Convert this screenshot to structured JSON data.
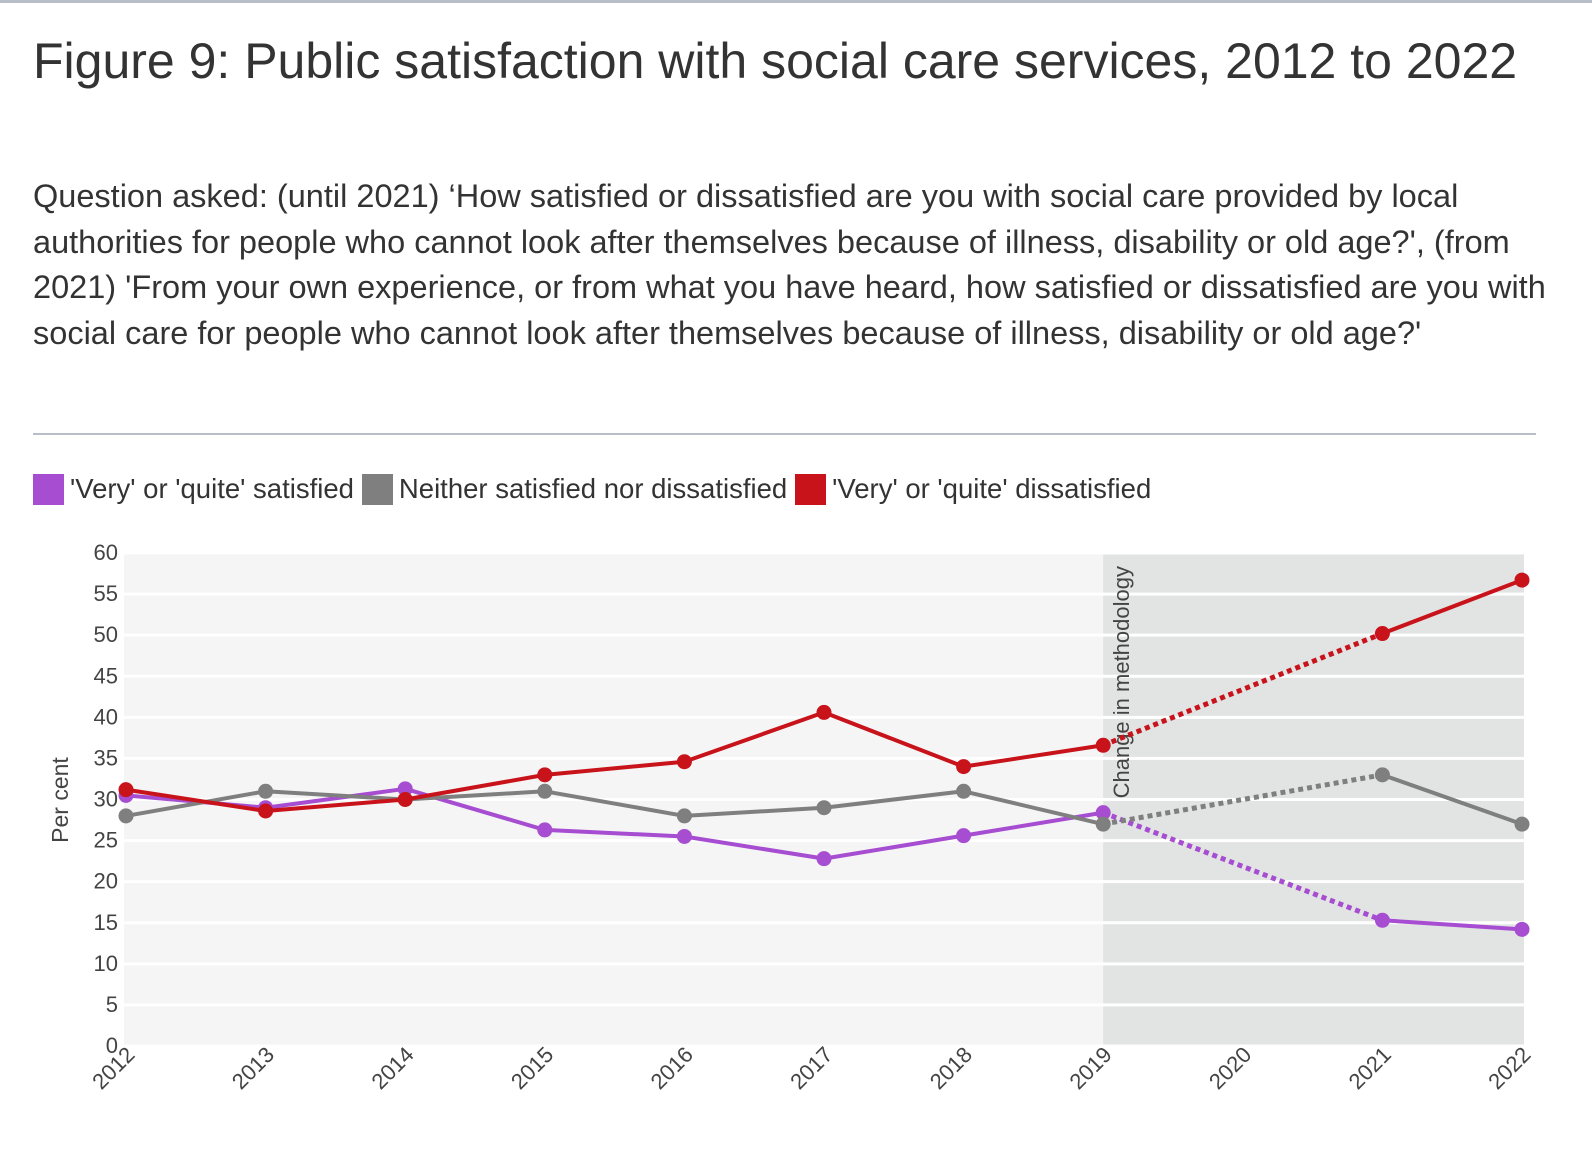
{
  "figure": {
    "title": "Figure 9: Public satisfaction with social care services, 2012 to 2022",
    "subtitle": "Question asked: (until 2021) ‘How satisfied or dissatisfied are you with social care provided by local authorities for people who cannot look after themselves because of illness, disability or old age?', (from 2021) 'From your own experience, or from what you have heard, how satisfied or dissatisfied are you with social care for people who cannot look after themselves because of illness, disability or old age?'"
  },
  "chart_data": {
    "type": "line",
    "x": [
      2012,
      2013,
      2014,
      2015,
      2016,
      2017,
      2018,
      2019,
      2020,
      2021,
      2022
    ],
    "x_tick_labels": [
      "2012",
      "2013",
      "2014",
      "2015",
      "2016",
      "2017",
      "2018",
      "2019",
      "2020",
      "2021",
      "2022"
    ],
    "ylabel": "Per cent",
    "ylim": [
      0,
      60
    ],
    "y_ticks": [
      0,
      5,
      10,
      15,
      20,
      25,
      30,
      35,
      40,
      45,
      50,
      55,
      60
    ],
    "grid": true,
    "legend_position": "top-left",
    "annotation": {
      "label": "Change in methodology",
      "shaded_from": 2019,
      "shaded_to": 2022
    },
    "series": [
      {
        "name": "'Very' or 'quite' satisfied",
        "color": "#a64dd1",
        "points": [
          [
            2012,
            30.5
          ],
          [
            2013,
            29
          ],
          [
            2014,
            31.3
          ],
          [
            2015,
            26.3
          ],
          [
            2016,
            25.5
          ],
          [
            2017,
            22.8
          ],
          [
            2018,
            25.6
          ],
          [
            2019,
            28.4
          ],
          [
            2021,
            15.3
          ],
          [
            2022,
            14.2
          ]
        ]
      },
      {
        "name": "Neither satisfied nor dissatisfied",
        "color": "#7f7f7f",
        "points": [
          [
            2012,
            28
          ],
          [
            2013,
            31
          ],
          [
            2014,
            30
          ],
          [
            2015,
            31
          ],
          [
            2016,
            28
          ],
          [
            2017,
            29
          ],
          [
            2018,
            31
          ],
          [
            2019,
            27
          ],
          [
            2021,
            33
          ],
          [
            2022,
            27
          ]
        ]
      },
      {
        "name": "'Very' or 'quite' dissatisfied",
        "color": "#c8131b",
        "points": [
          [
            2012,
            31.2
          ],
          [
            2013,
            28.6
          ],
          [
            2014,
            30
          ],
          [
            2015,
            33
          ],
          [
            2016,
            34.6
          ],
          [
            2017,
            40.6
          ],
          [
            2018,
            34
          ],
          [
            2019,
            36.6
          ],
          [
            2021,
            50.2
          ],
          [
            2022,
            56.7
          ]
        ]
      }
    ],
    "dotted_segment": {
      "from": 2019,
      "to": 2021
    }
  }
}
